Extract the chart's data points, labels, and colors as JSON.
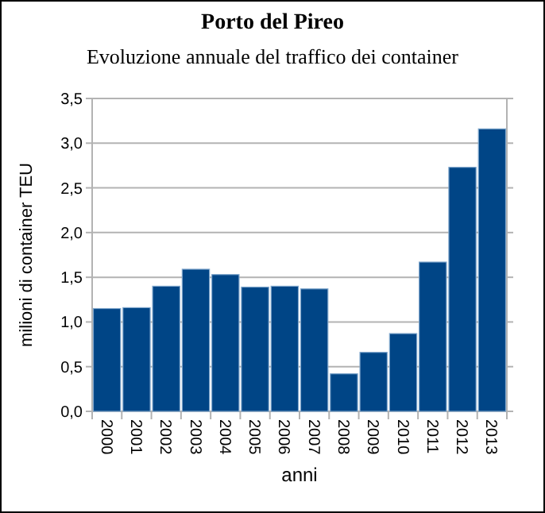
{
  "chart_data": {
    "type": "bar",
    "title": "Porto del Pireo",
    "subtitle": "Evoluzione annuale del traffico dei container",
    "xlabel": "anni",
    "ylabel": "milioni di container TEU",
    "categories": [
      "2000",
      "2001",
      "2002",
      "2003",
      "2004",
      "2005",
      "2006",
      "2007",
      "2008",
      "2009",
      "2010",
      "2011",
      "2012",
      "2013"
    ],
    "values": [
      1.15,
      1.16,
      1.4,
      1.59,
      1.53,
      1.39,
      1.4,
      1.37,
      0.42,
      0.66,
      0.87,
      1.67,
      2.73,
      3.16
    ],
    "color": "#004586",
    "ylim": [
      0,
      3.5
    ],
    "yticks": [
      {
        "value": 0,
        "label": "0,0"
      },
      {
        "value": 0.5,
        "label": "0,5"
      },
      {
        "value": 1,
        "label": "1,0"
      },
      {
        "value": 1.5,
        "label": "1,5"
      },
      {
        "value": 2,
        "label": "2,0"
      },
      {
        "value": 2.5,
        "label": "2,5"
      },
      {
        "value": 3,
        "label": "3,0"
      },
      {
        "value": 3.5,
        "label": "3,5"
      }
    ],
    "grid": "y"
  }
}
